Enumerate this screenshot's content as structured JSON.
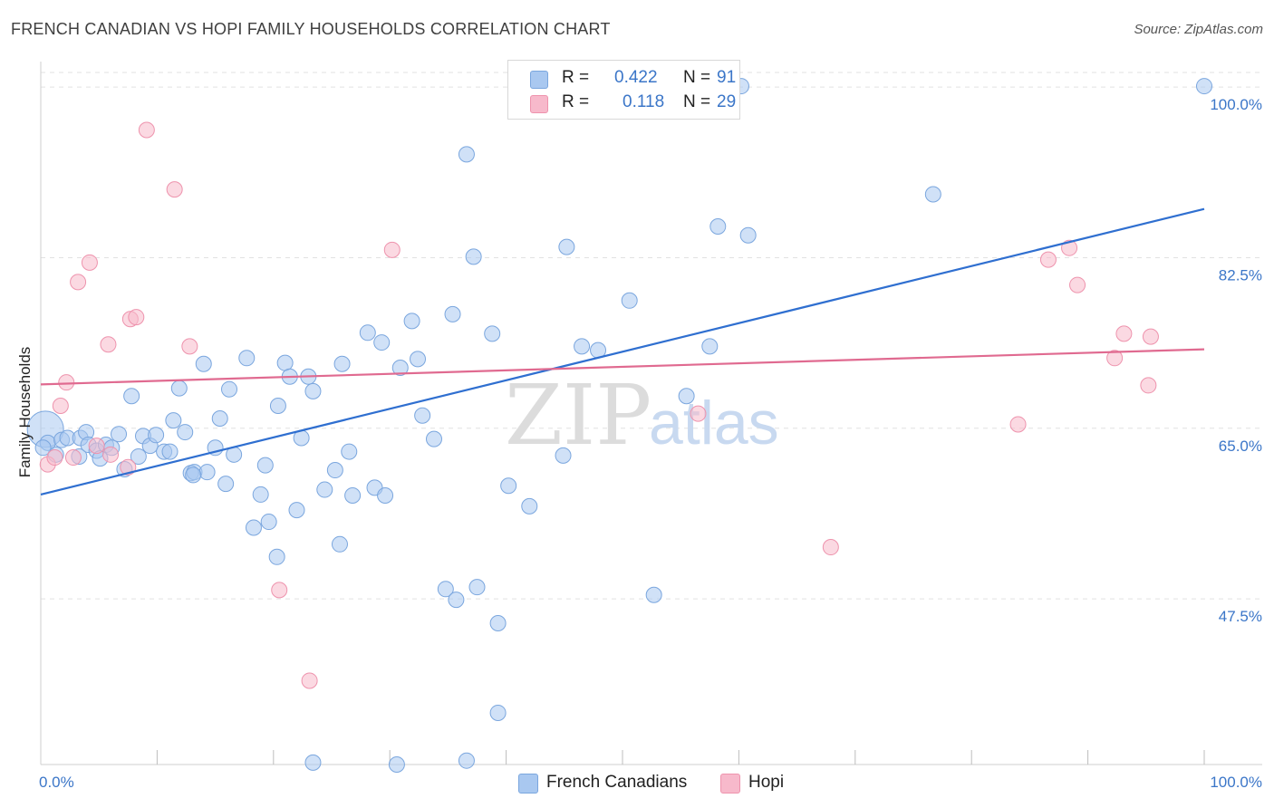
{
  "header": {
    "title": "FRENCH CANADIAN VS HOPI FAMILY HOUSEHOLDS CORRELATION CHART",
    "source": "Source: ZipAtlas.com"
  },
  "legend_top": {
    "r_label": "R =",
    "n_label": "N =",
    "series": [
      {
        "r": "0.422",
        "n": "91",
        "color": "#a9c8f0"
      },
      {
        "r": "0.118",
        "n": "29",
        "color": "#f7b9cb"
      }
    ]
  },
  "legend_bottom": [
    "French Canadians",
    "Hopi"
  ],
  "watermark": {
    "zip": "ZIP",
    "atlas": "atlas"
  },
  "colors": {
    "blue_fill": "#a9c8f0",
    "blue_stroke": "#7aa6de",
    "blue_line": "#2f6fd0",
    "pink_fill": "#f7b9cb",
    "pink_stroke": "#ee93ad",
    "pink_line": "#e06a90",
    "axis_text": "#3b76c8"
  },
  "chart_data": {
    "type": "scatter",
    "title": "FRENCH CANADIAN VS HOPI FAMILY HOUSEHOLDS CORRELATION CHART",
    "xlabel": "",
    "ylabel": "Family Households",
    "xlim": [
      0,
      100
    ],
    "ylim": [
      30.5,
      101.5
    ],
    "x_tick_labels": [
      "0.0%",
      "100.0%"
    ],
    "y_ticks": [
      47.5,
      65.0,
      82.5,
      100.0
    ],
    "y_tick_labels": [
      "47.5%",
      "65.0%",
      "82.5%",
      "100.0%"
    ],
    "grid": true,
    "series": [
      {
        "name": "French Canadians",
        "R": 0.422,
        "N": 91,
        "trend": [
          [
            0,
            58.2
          ],
          [
            100,
            87.5
          ]
        ],
        "points": [
          [
            0.4,
            64.9
          ],
          [
            0.6,
            63.5
          ],
          [
            1.3,
            62.3
          ],
          [
            1.8,
            63.8
          ],
          [
            2.3,
            64.0
          ],
          [
            3.3,
            62.1
          ],
          [
            3.4,
            64.0
          ],
          [
            3.9,
            64.6
          ],
          [
            4.1,
            63.3
          ],
          [
            4.8,
            62.7
          ],
          [
            5.1,
            61.9
          ],
          [
            5.6,
            63.3
          ],
          [
            6.1,
            63.0
          ],
          [
            6.7,
            64.4
          ],
          [
            7.2,
            60.8
          ],
          [
            7.8,
            68.3
          ],
          [
            8.4,
            62.1
          ],
          [
            8.8,
            64.2
          ],
          [
            9.4,
            63.2
          ],
          [
            9.9,
            64.3
          ],
          [
            10.6,
            62.6
          ],
          [
            11.1,
            62.6
          ],
          [
            11.4,
            65.8
          ],
          [
            11.9,
            69.1
          ],
          [
            12.4,
            64.6
          ],
          [
            12.9,
            60.4
          ],
          [
            13.2,
            60.5
          ],
          [
            14.0,
            71.6
          ],
          [
            14.3,
            60.5
          ],
          [
            15.0,
            63.0
          ],
          [
            15.4,
            66.0
          ],
          [
            15.9,
            59.3
          ],
          [
            16.2,
            69.0
          ],
          [
            16.6,
            62.3
          ],
          [
            17.7,
            72.2
          ],
          [
            18.3,
            54.8
          ],
          [
            18.9,
            58.2
          ],
          [
            19.3,
            61.2
          ],
          [
            19.6,
            55.4
          ],
          [
            20.4,
            67.3
          ],
          [
            21.0,
            71.7
          ],
          [
            21.4,
            70.3
          ],
          [
            22.0,
            56.6
          ],
          [
            22.4,
            64.0
          ],
          [
            23.0,
            70.3
          ],
          [
            23.4,
            68.8
          ],
          [
            24.4,
            58.7
          ],
          [
            25.3,
            60.7
          ],
          [
            25.7,
            53.1
          ],
          [
            25.9,
            71.6
          ],
          [
            26.5,
            62.6
          ],
          [
            26.8,
            58.1
          ],
          [
            28.1,
            74.8
          ],
          [
            28.7,
            58.9
          ],
          [
            29.3,
            73.8
          ],
          [
            29.6,
            58.1
          ],
          [
            30.9,
            71.2
          ],
          [
            31.9,
            76.0
          ],
          [
            32.4,
            72.1
          ],
          [
            32.8,
            66.3
          ],
          [
            33.8,
            63.9
          ],
          [
            34.8,
            48.5
          ],
          [
            35.4,
            76.7
          ],
          [
            35.7,
            47.4
          ],
          [
            36.6,
            93.1
          ],
          [
            37.2,
            82.6
          ],
          [
            37.5,
            48.7
          ],
          [
            38.8,
            74.7
          ],
          [
            39.3,
            45.0
          ],
          [
            40.2,
            59.1
          ],
          [
            42.0,
            57.0
          ],
          [
            44.9,
            62.2
          ],
          [
            45.2,
            83.6
          ],
          [
            46.5,
            73.4
          ],
          [
            47.9,
            73.0
          ],
          [
            50.6,
            78.1
          ],
          [
            52.7,
            47.9
          ],
          [
            55.5,
            68.3
          ],
          [
            57.5,
            73.4
          ],
          [
            58.2,
            85.7
          ],
          [
            60.2,
            100.1
          ],
          [
            60.8,
            84.8
          ],
          [
            76.7,
            89.0
          ],
          [
            100.0,
            100.1
          ],
          [
            0.2,
            63.0
          ],
          [
            13.1,
            60.2
          ],
          [
            20.3,
            51.8
          ],
          [
            23.4,
            30.7
          ],
          [
            30.6,
            30.5
          ],
          [
            36.6,
            30.9
          ],
          [
            39.3,
            35.8
          ]
        ]
      },
      {
        "name": "Hopi",
        "R": 0.118,
        "N": 29,
        "trend": [
          [
            0,
            69.5
          ],
          [
            100,
            73.1
          ]
        ],
        "points": [
          [
            0.6,
            61.3
          ],
          [
            1.2,
            62.0
          ],
          [
            1.7,
            67.3
          ],
          [
            2.2,
            69.7
          ],
          [
            2.8,
            62.0
          ],
          [
            3.2,
            80.0
          ],
          [
            4.2,
            82.0
          ],
          [
            4.8,
            63.2
          ],
          [
            5.8,
            73.6
          ],
          [
            6.0,
            62.3
          ],
          [
            7.5,
            61.0
          ],
          [
            7.7,
            76.2
          ],
          [
            8.2,
            76.4
          ],
          [
            9.1,
            95.6
          ],
          [
            11.5,
            89.5
          ],
          [
            12.8,
            73.4
          ],
          [
            20.5,
            48.4
          ],
          [
            23.1,
            39.1
          ],
          [
            30.2,
            83.3
          ],
          [
            56.5,
            66.5
          ],
          [
            67.9,
            52.8
          ],
          [
            84.0,
            65.4
          ],
          [
            86.6,
            82.3
          ],
          [
            88.4,
            83.5
          ],
          [
            89.1,
            79.7
          ],
          [
            92.3,
            72.2
          ],
          [
            93.1,
            74.7
          ],
          [
            95.2,
            69.4
          ],
          [
            95.4,
            74.4
          ]
        ]
      }
    ]
  }
}
